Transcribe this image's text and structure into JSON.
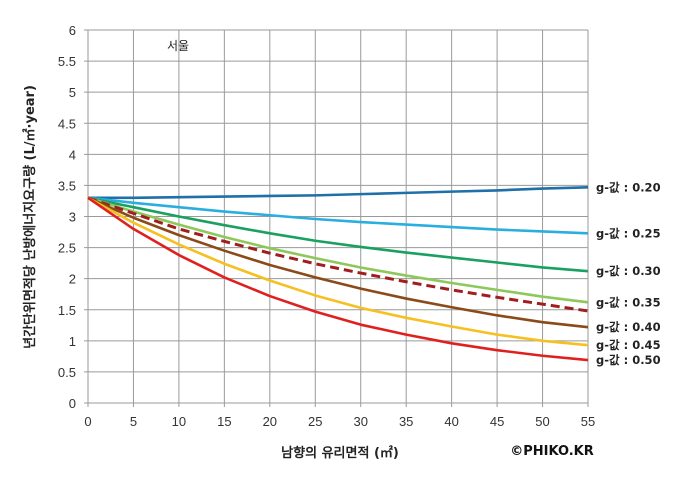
{
  "chart_data": {
    "type": "line",
    "title": "서울",
    "xlabel": "남향의 유리면적 (㎡)",
    "ylabel": "년간단위면적당 난방에너지요구량 (L/㎡·year)",
    "watermark": "©PHIKO.KR",
    "xlim": [
      0,
      55
    ],
    "ylim": [
      0,
      6
    ],
    "grid": true,
    "x": [
      0,
      5,
      10,
      15,
      20,
      25,
      30,
      35,
      40,
      45,
      50,
      55
    ],
    "xticks": [
      "0",
      "5",
      "10",
      "15",
      "20",
      "25",
      "30",
      "35",
      "40",
      "45",
      "50",
      "55"
    ],
    "yticks": [
      "0",
      "0.5",
      "1",
      "1.5",
      "2",
      "2.5",
      "3",
      "3.5",
      "4",
      "4.5",
      "5",
      "5.5",
      "6"
    ],
    "series": [
      {
        "name": "g-값 : 0.20",
        "color": "#1f6fa8",
        "dashed": false,
        "values": [
          3.3,
          3.3,
          3.31,
          3.32,
          3.33,
          3.34,
          3.36,
          3.38,
          3.4,
          3.42,
          3.45,
          3.47
        ]
      },
      {
        "name": "g-값 : 0.25",
        "color": "#2aaee0",
        "dashed": false,
        "values": [
          3.3,
          3.22,
          3.15,
          3.08,
          3.02,
          2.96,
          2.91,
          2.87,
          2.83,
          2.79,
          2.76,
          2.73
        ]
      },
      {
        "name": "g-값 : 0.30",
        "color": "#1aa060",
        "dashed": false,
        "values": [
          3.3,
          3.15,
          3.0,
          2.86,
          2.73,
          2.61,
          2.51,
          2.42,
          2.34,
          2.26,
          2.18,
          2.12
        ]
      },
      {
        "name": "g-값 : 0.35",
        "color": "#8dc85a",
        "dashed": false,
        "values": [
          3.3,
          3.08,
          2.87,
          2.67,
          2.49,
          2.33,
          2.18,
          2.05,
          1.93,
          1.82,
          1.71,
          1.62
        ]
      },
      {
        "name": "",
        "color": "#a01e1e",
        "dashed": true,
        "values": [
          3.3,
          3.05,
          2.8,
          2.6,
          2.41,
          2.24,
          2.09,
          1.95,
          1.82,
          1.7,
          1.59,
          1.48
        ]
      },
      {
        "name": "g-값 : 0.40",
        "color": "#8b4a1a",
        "dashed": false,
        "values": [
          3.3,
          2.98,
          2.7,
          2.45,
          2.22,
          2.02,
          1.84,
          1.68,
          1.54,
          1.41,
          1.3,
          1.22
        ]
      },
      {
        "name": "g-값 : 0.45",
        "color": "#f5c020",
        "dashed": false,
        "values": [
          3.3,
          2.9,
          2.55,
          2.24,
          1.97,
          1.73,
          1.53,
          1.37,
          1.23,
          1.1,
          1.0,
          0.93
        ]
      },
      {
        "name": "g-값 : 0.50",
        "color": "#e02020",
        "dashed": false,
        "values": [
          3.3,
          2.8,
          2.38,
          2.02,
          1.72,
          1.47,
          1.26,
          1.1,
          0.96,
          0.85,
          0.76,
          0.69
        ]
      }
    ]
  }
}
